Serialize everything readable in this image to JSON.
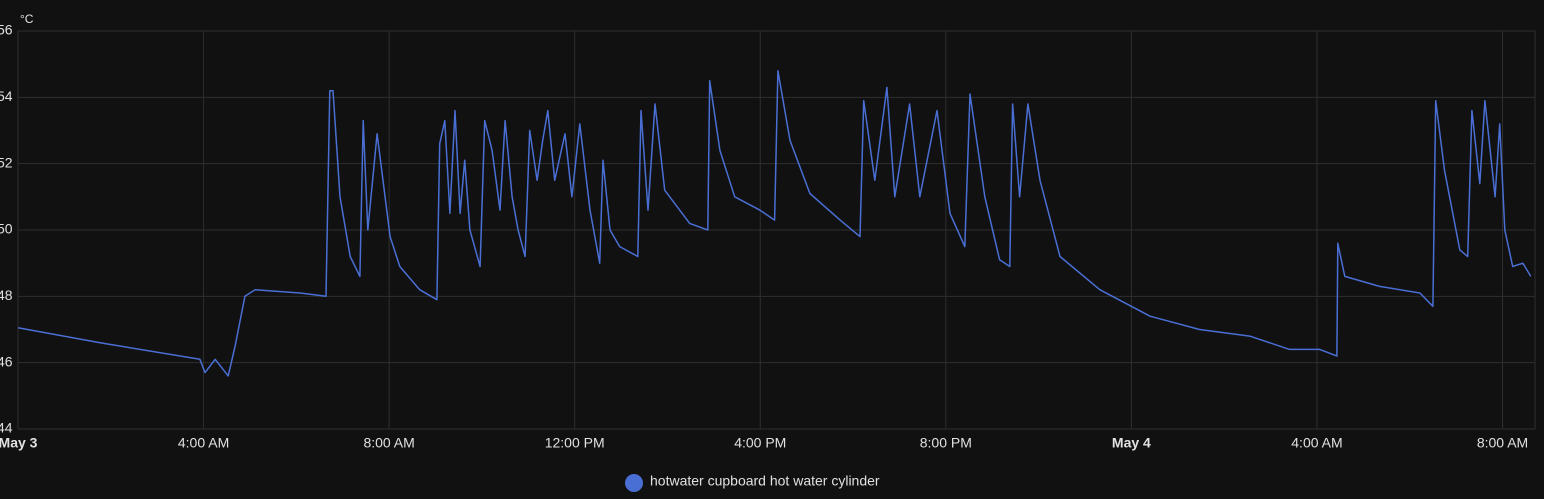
{
  "chart_data": {
    "type": "line",
    "y_unit_label": "°C",
    "x": [
      0,
      1.77,
      3.92,
      4.03,
      4.25,
      4.53,
      4.68,
      4.89,
      5.11,
      6.08,
      6.64,
      6.72,
      6.79,
      6.94,
      7.16,
      7.37,
      7.44,
      7.54,
      7.74,
      8.02,
      8.23,
      8.66,
      9.03,
      9.09,
      9.2,
      9.31,
      9.42,
      9.53,
      9.63,
      9.74,
      9.96,
      10.06,
      10.22,
      10.39,
      10.5,
      10.65,
      10.78,
      10.93,
      11.03,
      11.19,
      11.31,
      11.42,
      11.57,
      11.79,
      11.94,
      12.11,
      12.33,
      12.54,
      12.61,
      12.76,
      12.97,
      13.36,
      13.43,
      13.58,
      13.73,
      13.94,
      14.48,
      14.87,
      14.91,
      15.13,
      15.45,
      15.99,
      16.31,
      16.38,
      16.64,
      17.07,
      17.72,
      18.15,
      18.23,
      18.47,
      18.73,
      18.9,
      19.22,
      19.44,
      19.81,
      20.09,
      20.41,
      20.52,
      20.84,
      21.16,
      21.38,
      21.44,
      21.59,
      21.77,
      22.03,
      22.46,
      23.32,
      24.4,
      25.47,
      26.55,
      27.41,
      28.06,
      28.43,
      28.45,
      28.6,
      29.35,
      30.22,
      30.5,
      30.56,
      30.75,
      31.08,
      31.25,
      31.34,
      31.51,
      31.62,
      31.84,
      31.94,
      32.05,
      32.22,
      32.44,
      32.61
    ],
    "series": [
      {
        "name": "hotwater cupboard hot water cylinder",
        "color": "#4a6fd4",
        "values": [
          47.05,
          46.6,
          46.1,
          45.7,
          46.1,
          45.6,
          46.5,
          48.0,
          48.2,
          48.1,
          48.0,
          54.2,
          54.2,
          51.0,
          49.2,
          48.6,
          53.3,
          50.0,
          52.9,
          49.8,
          48.9,
          48.2,
          47.9,
          52.6,
          53.3,
          50.5,
          53.6,
          50.5,
          52.1,
          50.0,
          48.9,
          53.3,
          52.4,
          50.6,
          53.3,
          51.0,
          50.0,
          49.2,
          53.0,
          51.5,
          52.7,
          53.6,
          51.5,
          52.9,
          51.0,
          53.2,
          50.6,
          49.0,
          52.1,
          50.0,
          49.5,
          49.2,
          53.6,
          50.6,
          53.8,
          51.2,
          50.2,
          50.0,
          54.5,
          52.4,
          51.0,
          50.6,
          50.3,
          54.8,
          52.7,
          51.1,
          50.3,
          49.8,
          53.9,
          51.5,
          54.3,
          51.0,
          53.8,
          51.0,
          53.6,
          50.5,
          49.5,
          54.1,
          51.0,
          49.1,
          48.9,
          53.8,
          51.0,
          53.8,
          51.5,
          49.2,
          48.2,
          47.4,
          47.0,
          46.8,
          46.4,
          46.4,
          46.2,
          49.6,
          48.6,
          48.3,
          48.1,
          47.7,
          53.9,
          51.8,
          49.4,
          49.2,
          53.6,
          51.4,
          53.9,
          51.0,
          53.2,
          50.0,
          48.9,
          49.0,
          48.6
        ]
      }
    ],
    "xlim": [
      0,
      32.7
    ],
    "xticks": [
      {
        "value": 0,
        "label": "May 3"
      },
      {
        "value": 4,
        "label": "4:00 AM"
      },
      {
        "value": 8,
        "label": "8:00 AM"
      },
      {
        "value": 12,
        "label": "12:00 PM"
      },
      {
        "value": 16,
        "label": "4:00 PM"
      },
      {
        "value": 20,
        "label": "8:00 PM"
      },
      {
        "value": 24,
        "label": "May 4"
      },
      {
        "value": 28,
        "label": "4:00 AM"
      },
      {
        "value": 32,
        "label": "8:00 AM"
      }
    ],
    "ylim": [
      44,
      56
    ],
    "yticks": [
      44,
      46,
      48,
      50,
      52,
      54,
      56
    ],
    "grid": true
  }
}
